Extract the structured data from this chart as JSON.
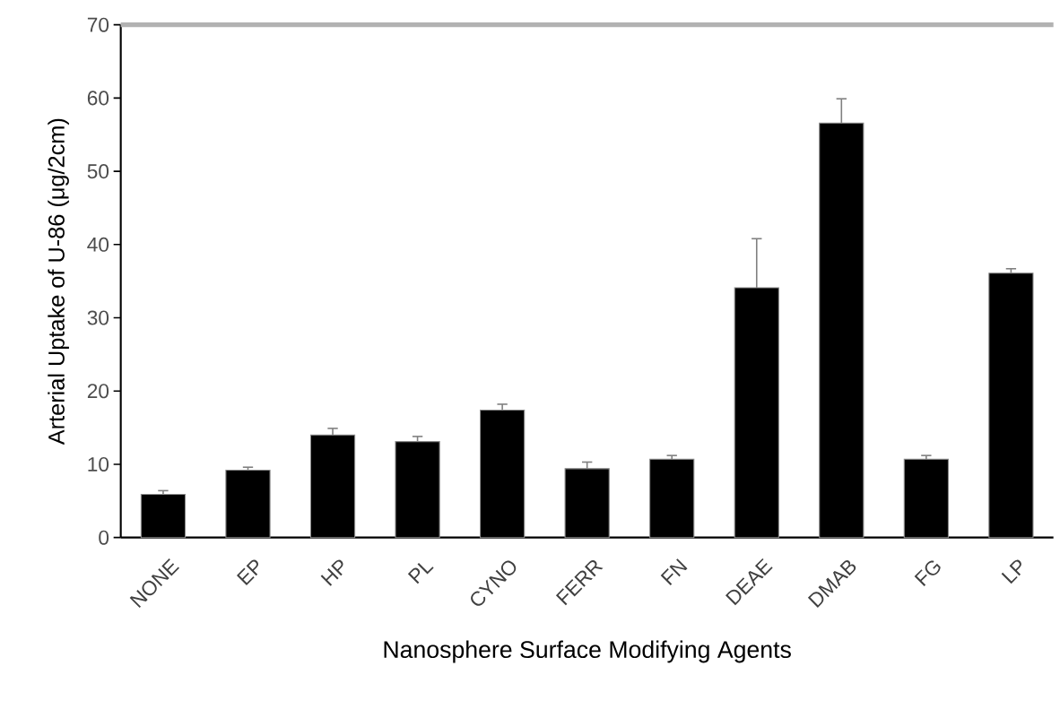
{
  "chart_data": {
    "type": "bar",
    "xlabel": "Nanosphere Surface Modifying Agents",
    "ylabel": "Arterial Uptake of U-86 (μg/2cm)",
    "categories": [
      "NONE",
      "EP",
      "HP",
      "PL",
      "CYNO",
      "FERR",
      "FN",
      "DEAE",
      "DMAB",
      "FG",
      "LP"
    ],
    "values": [
      5.9,
      9.2,
      14.0,
      13.1,
      17.4,
      9.4,
      10.7,
      34.1,
      56.6,
      10.7,
      36.1
    ],
    "errors": [
      [
        5.9,
        6.4
      ],
      [
        9.2,
        9.6
      ],
      [
        14.0,
        14.9
      ],
      [
        13.1,
        13.8
      ],
      [
        17.4,
        18.2
      ],
      [
        9.4,
        10.3
      ],
      [
        10.7,
        11.2
      ],
      [
        34.1,
        40.8
      ],
      [
        56.6,
        59.9
      ],
      [
        10.7,
        11.2
      ],
      [
        36.1,
        36.7
      ]
    ],
    "color": "#000000",
    "ylim": [
      0,
      70
    ],
    "yticks": [
      0,
      10,
      20,
      30,
      40,
      50,
      60,
      70
    ],
    "grid": false
  }
}
